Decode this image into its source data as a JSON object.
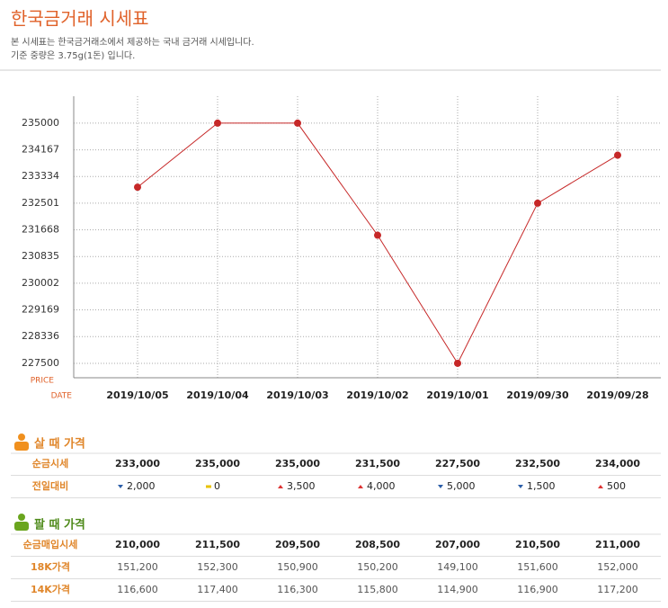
{
  "header": {
    "title": "한국금거래 시세표",
    "lines": [
      "본 시세표는 한국금거래소에서 제공하는 국내 금거래 시세입니다.",
      "기준 중량은 3.75g(1돈) 입니다."
    ]
  },
  "chart_data": {
    "type": "line",
    "y_label": "PRICE",
    "x_label": "DATE",
    "categories": [
      "2019/10/05",
      "2019/10/04",
      "2019/10/03",
      "2019/10/02",
      "2019/10/01",
      "2019/09/30",
      "2019/09/28"
    ],
    "values": [
      233000,
      235000,
      235000,
      231500,
      227500,
      232500,
      234000
    ],
    "color": "#c62828",
    "ylim": [
      227050,
      235840
    ],
    "yticks": [
      227500,
      228336,
      229169,
      230002,
      230835,
      231668,
      232501,
      233334,
      234167,
      235000
    ],
    "grid": true
  },
  "buy": {
    "title": "살 때 가격",
    "rows": [
      {
        "label": "순금시세",
        "cells": [
          "233,000",
          "235,000",
          "235,000",
          "231,500",
          "227,500",
          "232,500",
          "234,000"
        ]
      }
    ],
    "change": {
      "label": "전일대비",
      "items": [
        {
          "dir": "down",
          "text": "2,000"
        },
        {
          "dir": "flat",
          "text": "0"
        },
        {
          "dir": "up",
          "text": "3,500"
        },
        {
          "dir": "up",
          "text": "4,000"
        },
        {
          "dir": "down",
          "text": "5,000"
        },
        {
          "dir": "down",
          "text": "1,500"
        },
        {
          "dir": "up",
          "text": "500"
        }
      ]
    }
  },
  "sell": {
    "title": "팔 때 가격",
    "rows": [
      {
        "label": "순금매입시세",
        "cells": [
          "210,000",
          "211,500",
          "209,500",
          "208,500",
          "207,000",
          "210,500",
          "211,000"
        ]
      },
      {
        "label": "18K가격",
        "cells": [
          "151,200",
          "152,300",
          "150,900",
          "150,200",
          "149,100",
          "151,600",
          "152,000"
        ]
      },
      {
        "label": "14K가격",
        "cells": [
          "116,600",
          "117,400",
          "116,300",
          "115,800",
          "114,900",
          "116,900",
          "117,200"
        ]
      }
    ]
  }
}
